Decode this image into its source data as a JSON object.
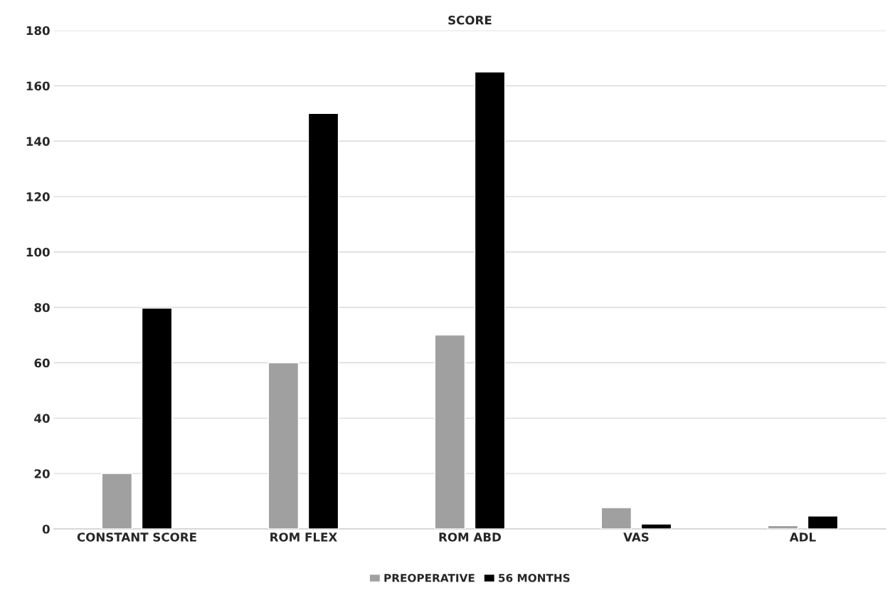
{
  "chart_data": {
    "type": "bar",
    "title": "SCORE",
    "categories": [
      "CONSTANT SCORE",
      "ROM FLEX",
      "ROM ABD",
      "VAS",
      "ADL"
    ],
    "series": [
      {
        "name": "PREOPERATIVE",
        "color": "#a0a0a0",
        "values": [
          20,
          60,
          70,
          7.7,
          1.2
        ]
      },
      {
        "name": "56 MONTHS",
        "color": "#000000",
        "values": [
          79.7,
          150,
          165,
          1.8,
          4.7
        ]
      }
    ],
    "ylim": [
      0,
      180
    ],
    "yticks": [
      0,
      20,
      40,
      60,
      80,
      100,
      120,
      140,
      160,
      180
    ],
    "grid": "y",
    "legend": "bottom"
  }
}
